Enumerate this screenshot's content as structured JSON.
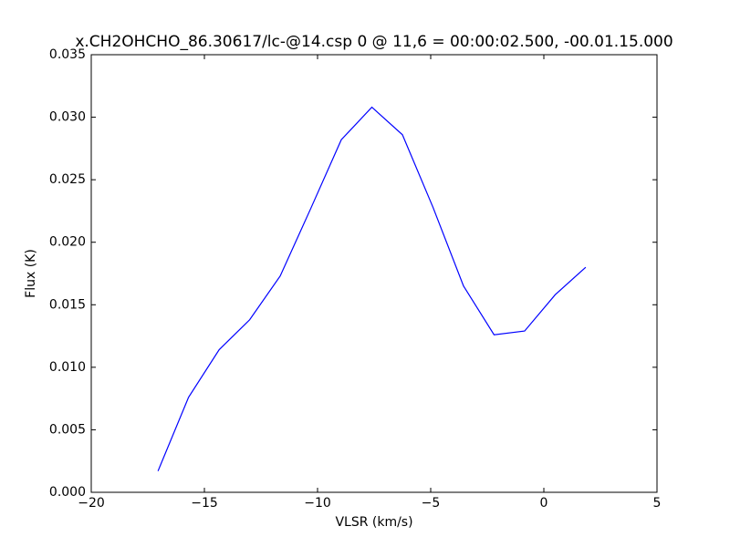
{
  "chart_data": {
    "type": "line",
    "title": "x.CH2OHCHO_86.30617/lc-@14.csp 0 @ 11,6 = 00:00:02.500, -00.01.15.000",
    "x_label": "VLSR (km/s)",
    "y_label": "Flux (K)",
    "x": [
      -17.05,
      -15.7,
      -14.35,
      -13.0,
      -11.65,
      -10.3,
      -8.95,
      -7.6,
      -6.25,
      -4.9,
      -3.55,
      -2.2,
      -0.85,
      0.5,
      1.85
    ],
    "series": [
      {
        "color": "#0000ff",
        "values": [
          0.0017,
          0.0076,
          0.0114,
          0.0138,
          0.0173,
          0.0227,
          0.0282,
          0.0308,
          0.0286,
          0.0228,
          0.0165,
          0.0126,
          0.0129,
          0.0158,
          0.018
        ]
      }
    ],
    "xlim": [
      -20,
      5
    ],
    "xticks": [
      {
        "value": -20,
        "label": "−20"
      },
      {
        "value": -15,
        "label": "−15"
      },
      {
        "value": -10,
        "label": "−10"
      },
      {
        "value": -5,
        "label": "−5"
      },
      0,
      5
    ],
    "ylim": [
      0,
      0.035
    ],
    "yticks": [
      {
        "value": 0,
        "label": "0.000"
      },
      {
        "value": 0.005,
        "label": "0.005"
      },
      {
        "value": 0.01,
        "label": "0.010"
      },
      {
        "value": 0.015,
        "label": "0.015"
      },
      {
        "value": 0.02,
        "label": "0.020"
      },
      {
        "value": 0.025,
        "label": "0.025"
      },
      {
        "value": 0.03,
        "label": "0.030"
      },
      {
        "value": 0.035,
        "label": "0.035"
      }
    ],
    "grid": false
  }
}
